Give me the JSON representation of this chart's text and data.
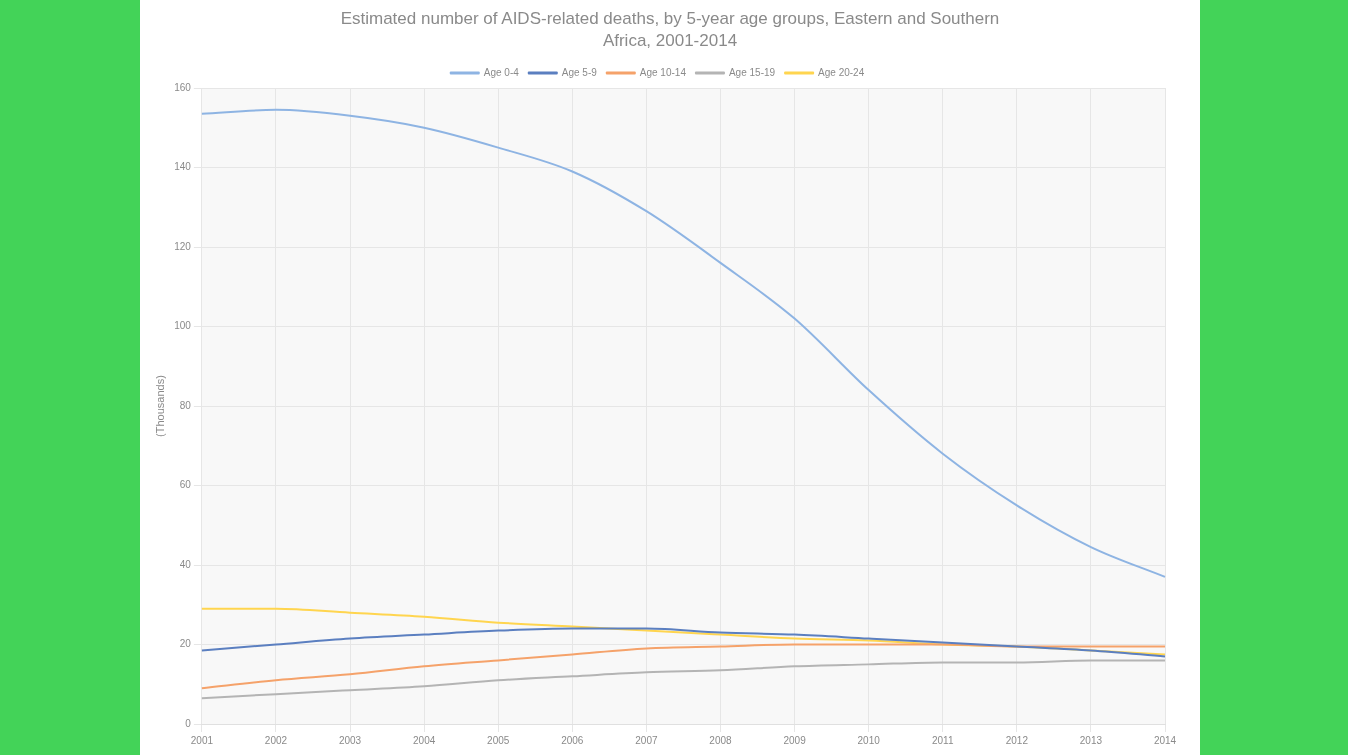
{
  "chart_data": {
    "type": "line",
    "title": "Estimated number of AIDS-related deaths, by 5-year age groups, Eastern and Southern Africa, 2001-2014",
    "ylabel": "(Thousands)",
    "categories": [
      "2001",
      "2002",
      "2003",
      "2004",
      "2005",
      "2006",
      "2007",
      "2008",
      "2009",
      "2010",
      "2011",
      "2012",
      "2013",
      "2014"
    ],
    "series": [
      {
        "name": "Age 0-4",
        "color": "#8eb4e3",
        "values": [
          153.5,
          154.5,
          153,
          150,
          145,
          139,
          129,
          116,
          102,
          84,
          68,
          55,
          44.5,
          37
        ]
      },
      {
        "name": "Age 5-9",
        "color": "#5b7fc0",
        "values": [
          18.5,
          20,
          21.5,
          22.5,
          23.5,
          24,
          24,
          23,
          22.5,
          21.5,
          20.5,
          19.5,
          18.5,
          17
        ]
      },
      {
        "name": "Age 10-14",
        "color": "#f5a26a",
        "values": [
          9,
          11,
          12.5,
          14.5,
          16,
          17.5,
          19,
          19.5,
          20,
          20,
          20,
          19.5,
          19.5,
          19.5
        ]
      },
      {
        "name": "Age 15-19",
        "color": "#b4b4b4",
        "values": [
          6.5,
          7.5,
          8.5,
          9.5,
          11,
          12,
          13,
          13.5,
          14.5,
          15,
          15.5,
          15.5,
          16,
          16
        ]
      },
      {
        "name": "Age 20-24",
        "color": "#ffd54f",
        "values": [
          29,
          29,
          28,
          27,
          25.5,
          24.5,
          23.5,
          22.5,
          21.5,
          21,
          20,
          19.5,
          18.5,
          17.5
        ]
      }
    ],
    "ylim": [
      0,
      160
    ],
    "yticks": [
      0,
      20,
      40,
      60,
      80,
      100,
      120,
      140,
      160
    ],
    "grid": true,
    "legend": "top",
    "marker": "none",
    "line_style": "solid"
  }
}
